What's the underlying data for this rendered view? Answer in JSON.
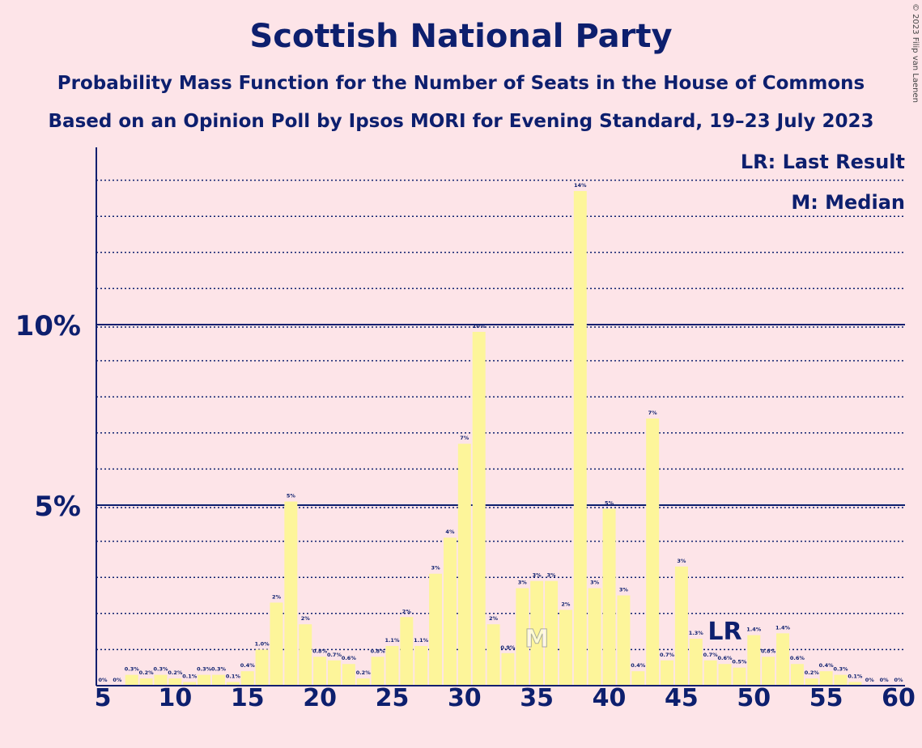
{
  "title": "Scottish National Party",
  "subtitle": "Probability Mass Function for the Number of Seats in the House of Commons",
  "subtitle2": "Based on an Opinion Poll by Ipsos MORI for Evening Standard, 19–23 July 2023",
  "copyright": "© 2023 Filip van Laenen",
  "legend": {
    "last_result": "LR: Last Result",
    "median": "M: Median"
  },
  "colors": {
    "background": "#fde4e8",
    "bar": "#fdf59a",
    "text": "#0d1f6e"
  },
  "chart_data": {
    "type": "bar",
    "x": [
      5,
      6,
      7,
      8,
      9,
      10,
      11,
      12,
      13,
      14,
      15,
      16,
      17,
      18,
      19,
      20,
      21,
      22,
      23,
      24,
      25,
      26,
      27,
      28,
      29,
      30,
      31,
      32,
      33,
      34,
      35,
      36,
      37,
      38,
      39,
      40,
      41,
      42,
      43,
      44,
      45,
      46,
      47,
      48,
      49,
      50,
      51,
      52,
      53,
      54,
      55,
      56,
      57,
      58,
      59,
      60
    ],
    "values": [
      0,
      0,
      0.3,
      0.2,
      0.3,
      0.2,
      0.1,
      0.3,
      0.3,
      0.1,
      0.4,
      1.0,
      2.3,
      5.1,
      1.7,
      0.8,
      0.7,
      0.6,
      0.2,
      0.8,
      1.1,
      1.9,
      1.1,
      3.1,
      4.1,
      6.7,
      9.8,
      1.7,
      0.9,
      2.7,
      2.9,
      2.9,
      2.1,
      13.7,
      2.7,
      4.9,
      2.5,
      0.4,
      7.4,
      0.7,
      3.3,
      1.3,
      0.7,
      0.6,
      0.5,
      1.4,
      0.8,
      1.45,
      0.6,
      0.2,
      0.4,
      0.3,
      0.1,
      0,
      0,
      0
    ],
    "labels": [
      "0%",
      "0%",
      "0.3%",
      "0.2%",
      "0.3%",
      "0.2%",
      "0.1%",
      "0.3%",
      "0.3%",
      "0.1%",
      "0.4%",
      "1.0%",
      "2%",
      "5%",
      "2%",
      "0.8%",
      "0.7%",
      "0.6%",
      "0.2%",
      "0.8%",
      "1.1%",
      "2%",
      "1.1%",
      "3%",
      "4%",
      "7%",
      "10%",
      "2%",
      "0.9%",
      "3%",
      "3%",
      "3%",
      "2%",
      "14%",
      "3%",
      "5%",
      "3%",
      "0.4%",
      "7%",
      "0.7%",
      "3%",
      "1.3%",
      "0.7%",
      "0.6%",
      "0.5%",
      "1.4%",
      "0.8%",
      "1.4%",
      "0.6%",
      "0.2%",
      "0.4%",
      "0.3%",
      "0.1%",
      "0%",
      "0%",
      "0%"
    ],
    "xlim": [
      5,
      60
    ],
    "ylim": [
      0,
      14.9
    ],
    "xticks": [
      5,
      10,
      15,
      20,
      25,
      30,
      35,
      40,
      45,
      50,
      55,
      60
    ],
    "ytick_labels": [
      {
        "value": 5,
        "label": "5%"
      },
      {
        "value": 10,
        "label": "10%"
      }
    ],
    "minor_grid_step": 1,
    "median_seat": 35,
    "median_marker": "M",
    "last_result_seat": 48,
    "last_result_marker": "LR",
    "legend_placement": "top-right"
  }
}
